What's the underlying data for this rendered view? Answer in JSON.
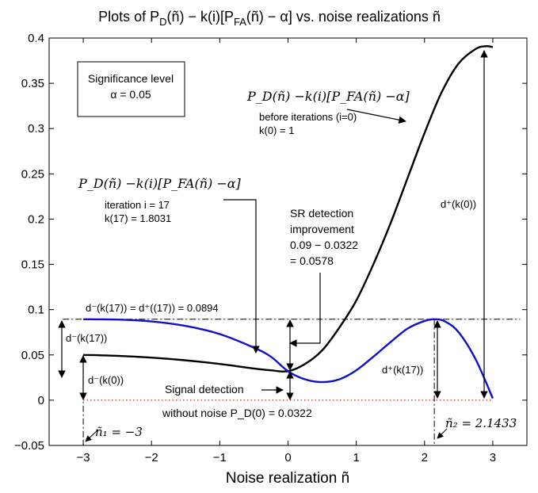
{
  "chart_data": {
    "type": "line",
    "title": "Plots of P_D(ñ) − k(i)[P_FA(ñ) − α] vs. noise realizations ñ",
    "title_parts": {
      "pre": "Plots of P",
      "sub_d": "D",
      "mid": "(ñ) − k(i)[P",
      "sub_fa": "FA",
      "post": "(ñ) − α]  vs. noise realizations ñ"
    },
    "xlabel": "Noise realization ñ",
    "ylabel": "",
    "xlim": [
      -3.5,
      3.5
    ],
    "ylim": [
      -0.05,
      0.4
    ],
    "xticks": [
      -3,
      -2,
      -1,
      0,
      1,
      2,
      3
    ],
    "yticks": [
      -0.05,
      0,
      0.05,
      0.1,
      0.15,
      0.2,
      0.25,
      0.3,
      0.35,
      0.4
    ],
    "xtick_labels": [
      "−3",
      "−2",
      "−1",
      "0",
      "1",
      "2",
      "3"
    ],
    "ytick_labels": [
      "−0.05",
      "0",
      "0.05",
      "0.1",
      "0.15",
      "0.2",
      "0.25",
      "0.3",
      "0.35",
      "0.4"
    ],
    "grid": false,
    "series": [
      {
        "color": "#000000",
        "x": [
          -3,
          -2.5,
          -2,
          -1.5,
          -1,
          -0.5,
          -0.25,
          0,
          0.25,
          0.5,
          0.75,
          1,
          1.25,
          1.5,
          1.75,
          2,
          2.25,
          2.5,
          2.75,
          2.9,
          3
        ],
        "y": [
          0.05,
          0.049,
          0.047,
          0.044,
          0.04,
          0.035,
          0.033,
          0.032,
          0.04,
          0.055,
          0.08,
          0.11,
          0.15,
          0.195,
          0.245,
          0.295,
          0.34,
          0.372,
          0.388,
          0.391,
          0.39
        ]
      },
      {
        "color": "#1010cc",
        "x": [
          -3,
          -2.5,
          -2,
          -1.5,
          -1,
          -0.5,
          -0.25,
          0,
          0.25,
          0.5,
          0.75,
          1,
          1.25,
          1.5,
          1.75,
          2,
          2.15,
          2.3,
          2.5,
          2.75,
          3
        ],
        "y": [
          0.0894,
          0.089,
          0.087,
          0.082,
          0.073,
          0.058,
          0.048,
          0.032,
          0.023,
          0.02,
          0.023,
          0.033,
          0.048,
          0.064,
          0.079,
          0.0875,
          0.0894,
          0.087,
          0.075,
          0.045,
          0.002
        ]
      }
    ],
    "annotations": {
      "sig_box_line1": "Significance level",
      "sig_box_line2": "α = 0.05",
      "formula_top": "P_D(ñ) −k(i)[P_FA(ñ) −α]",
      "before_iter_1": "before iterations (i=0)",
      "before_iter_2": "k(0) = 1",
      "formula_mid": "P_D(ñ) −k(i)[P_FA(ñ) −α]",
      "iter_1": "iteration i = 17",
      "iter_2": "k(17) = 1.8031",
      "sr_1": "SR detection",
      "sr_2": "improvement",
      "sr_3": "0.09 − 0.0322",
      "sr_4": "= 0.0578",
      "dminus_plus_eq": "d⁻(k(17)) = d⁺((17)) = 0.0894",
      "dminus_k17": "d⁻(k(17))",
      "dminus_k0": "d⁻(k(0))",
      "dplus_k0": "d⁺(k(0))",
      "dplus_k17": "d⁺(k(17))",
      "signal_detection": "Signal detection",
      "without_noise": "without noise P_D(0) = 0.0322",
      "n1_label": "ñ₁ = −3",
      "n2_label": "ñ₂ = 2.1433"
    },
    "reference_values": {
      "hline_dashdot": 0.0894,
      "hline_dotted": 0,
      "vline_n1": -3,
      "vline_n2": 2.1433
    }
  }
}
